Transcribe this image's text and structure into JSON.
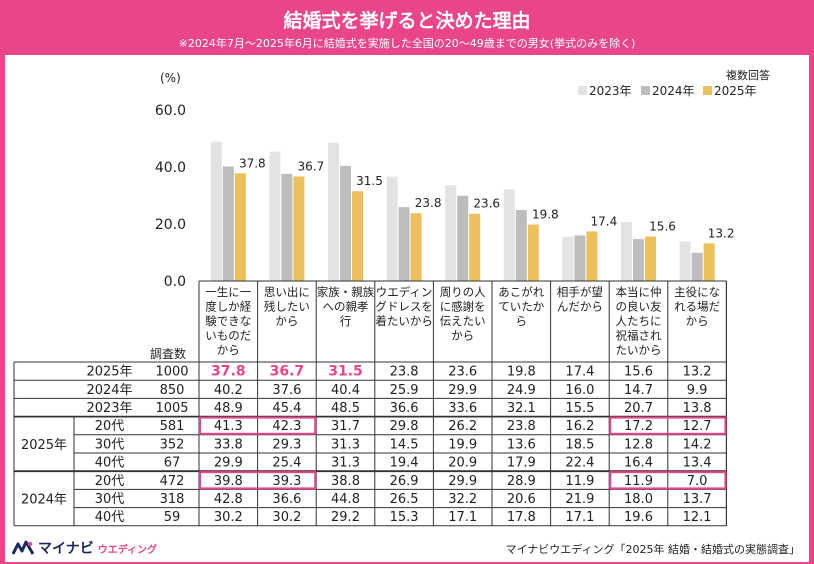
{
  "title": "結婚式を挙げると決めた理由",
  "subtitle": "※2024年7月～2025年6月に結婚式を実施した全国の20～49歳までの男女(挙式のみを除く)",
  "source": "マイナビウエディング「2025年 結婚・結婚式の実態調査」",
  "logo": {
    "main": "マイナビ",
    "sub": "ウエディング"
  },
  "colors": {
    "frame": "#e8458b",
    "s2023": "#e3e3e3",
    "s2024": "#bdbdbd",
    "s2025": "#ecc15c",
    "highlight": "#e8458b"
  },
  "chart_data": {
    "type": "bar",
    "ylabel": "(%)",
    "ylim": [
      0,
      60
    ],
    "yticks": [
      "60.0",
      "40.0",
      "20.0",
      "0.0"
    ],
    "legend_title": "複数回答",
    "legend_position": "top-right",
    "categories": [
      [
        "一生に一",
        "度しか経",
        "験できな",
        "いものだ",
        "から"
      ],
      [
        "思い出に",
        "残したい",
        "から"
      ],
      [
        "家族・親族",
        "への親孝",
        "行"
      ],
      [
        "ウエディン",
        "グドレスを",
        "着たいから"
      ],
      [
        "周りの人",
        "に感謝を",
        "伝えたい",
        "から"
      ],
      [
        "あこがれ",
        "ていたか",
        "ら"
      ],
      [
        "相手が望",
        "んだから"
      ],
      [
        "本当に仲",
        "の良い友",
        "人たちに",
        "祝福され",
        "たいから"
      ],
      [
        "主役にな",
        "れる場だ",
        "から"
      ]
    ],
    "series": [
      {
        "name": "2023年",
        "values": [
          48.9,
          45.4,
          48.5,
          36.6,
          33.6,
          32.1,
          15.5,
          20.7,
          13.8
        ]
      },
      {
        "name": "2024年",
        "values": [
          40.2,
          37.6,
          40.4,
          25.9,
          29.9,
          24.9,
          16.0,
          14.7,
          9.9
        ]
      },
      {
        "name": "2025年",
        "values": [
          37.8,
          36.7,
          31.5,
          23.8,
          23.6,
          19.8,
          17.4,
          15.6,
          13.2
        ]
      }
    ],
    "bar_labels": [
      "37.8",
      "36.7",
      "31.5",
      "23.8",
      "23.6",
      "19.8",
      "17.4",
      "15.6",
      "13.2"
    ],
    "table": {
      "count_header": "調査数",
      "rows": [
        {
          "group": "",
          "label": "2025年",
          "n": "1000",
          "values": [
            "37.8",
            "36.7",
            "31.5",
            "23.8",
            "23.6",
            "19.8",
            "17.4",
            "15.6",
            "13.2"
          ],
          "pink": [
            0,
            1,
            2
          ],
          "boxed": []
        },
        {
          "group": "",
          "label": "2024年",
          "n": "850",
          "values": [
            "40.2",
            "37.6",
            "40.4",
            "25.9",
            "29.9",
            "24.9",
            "16.0",
            "14.7",
            "9.9"
          ],
          "pink": [],
          "boxed": []
        },
        {
          "group": "",
          "label": "2023年",
          "n": "1005",
          "values": [
            "48.9",
            "45.4",
            "48.5",
            "36.6",
            "33.6",
            "32.1",
            "15.5",
            "20.7",
            "13.8"
          ],
          "pink": [],
          "boxed": []
        },
        {
          "group": "2025年",
          "label": "20代",
          "n": "581",
          "values": [
            "41.3",
            "42.3",
            "31.7",
            "29.8",
            "26.2",
            "23.8",
            "16.2",
            "17.2",
            "12.7"
          ],
          "pink": [],
          "boxed": [
            0,
            1,
            7,
            8
          ]
        },
        {
          "group": "2025年",
          "label": "30代",
          "n": "352",
          "values": [
            "33.8",
            "29.3",
            "31.3",
            "14.5",
            "19.9",
            "13.6",
            "18.5",
            "12.8",
            "14.2"
          ],
          "pink": [],
          "boxed": []
        },
        {
          "group": "2025年",
          "label": "40代",
          "n": "67",
          "values": [
            "29.9",
            "25.4",
            "31.3",
            "19.4",
            "20.9",
            "17.9",
            "22.4",
            "16.4",
            "13.4"
          ],
          "pink": [],
          "boxed": []
        },
        {
          "group": "2024年",
          "label": "20代",
          "n": "472",
          "values": [
            "39.8",
            "39.3",
            "38.8",
            "26.9",
            "29.9",
            "28.9",
            "11.9",
            "11.9",
            "7.0"
          ],
          "pink": [],
          "boxed": [
            0,
            1,
            7,
            8
          ]
        },
        {
          "group": "2024年",
          "label": "30代",
          "n": "318",
          "values": [
            "42.8",
            "36.6",
            "44.8",
            "26.5",
            "32.2",
            "20.6",
            "21.9",
            "18.0",
            "13.7"
          ],
          "pink": [],
          "boxed": []
        },
        {
          "group": "2024年",
          "label": "40代",
          "n": "59",
          "values": [
            "30.2",
            "30.2",
            "29.2",
            "15.3",
            "17.1",
            "17.8",
            "17.1",
            "19.6",
            "12.1"
          ],
          "pink": [],
          "boxed": []
        }
      ]
    }
  }
}
